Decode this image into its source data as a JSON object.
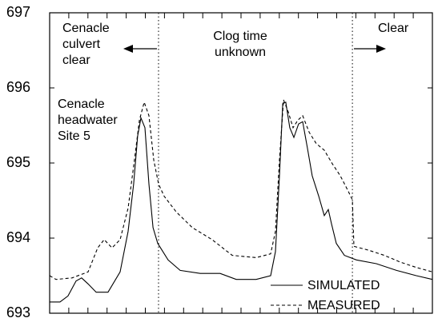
{
  "chart_data": {
    "type": "line",
    "ylim": [
      693,
      697
    ],
    "yticks": [
      693,
      694,
      695,
      696,
      697
    ],
    "xlim": [
      0,
      20
    ],
    "xticks": [
      1,
      2,
      3,
      4,
      5,
      6,
      7,
      8,
      9,
      10,
      11,
      12,
      13,
      14,
      15,
      16,
      17,
      18,
      19
    ],
    "vlines": [
      5.69,
      15.82
    ],
    "annotations": [
      [
        "Cenacle",
        "culvert",
        "clear"
      ],
      [
        "Clog time",
        "unknown"
      ],
      [
        "Clear"
      ],
      [
        "Cenacle",
        "headwater",
        "Site 5"
      ]
    ],
    "series": [
      {
        "name": "SIMULATED",
        "color": "#000000",
        "dash": false,
        "x": [
          0,
          0.54,
          0.96,
          1.38,
          1.67,
          2.01,
          2.43,
          3.05,
          3.68,
          4.1,
          4.39,
          4.6,
          4.77,
          4.98,
          5.19,
          5.4,
          5.65,
          6.19,
          6.82,
          7.87,
          8.91,
          9.75,
          10.79,
          11.55,
          11.8,
          12.01,
          12.18,
          12.34,
          12.55,
          12.76,
          13.01,
          13.22,
          13.47,
          13.72,
          14.06,
          14.35,
          14.56,
          14.73,
          14.98,
          15.4,
          16.03,
          17.07,
          18.12,
          19.16,
          20
        ],
        "values": [
          693.15,
          693.15,
          693.23,
          693.43,
          693.47,
          693.39,
          693.28,
          693.28,
          693.55,
          694.09,
          694.72,
          695.36,
          695.6,
          695.47,
          694.72,
          694.14,
          693.93,
          693.71,
          693.57,
          693.53,
          693.53,
          693.45,
          693.45,
          693.5,
          693.82,
          694.83,
          695.79,
          695.81,
          695.47,
          695.34,
          695.52,
          695.55,
          695.2,
          694.83,
          694.56,
          694.3,
          694.38,
          694.19,
          693.93,
          693.77,
          693.71,
          693.66,
          693.57,
          693.5,
          693.45
        ]
      },
      {
        "name": "MEASURED",
        "color": "#000000",
        "dash": true,
        "x": [
          0,
          0.33,
          1.17,
          2.01,
          2.51,
          2.85,
          3.26,
          3.68,
          4.1,
          4.43,
          4.69,
          4.94,
          5.19,
          5.44,
          5.69,
          5.98,
          6.61,
          7.45,
          8.49,
          9.54,
          10.79,
          11.55,
          11.8,
          12.01,
          12.22,
          12.47,
          12.72,
          12.97,
          13.22,
          13.56,
          13.93,
          14.35,
          14.77,
          15.19,
          15.61,
          15.82,
          15.9,
          16.65,
          17.49,
          18.33,
          19.16,
          20
        ],
        "values": [
          693.5,
          693.45,
          693.47,
          693.55,
          693.87,
          693.98,
          693.87,
          693.98,
          694.4,
          695.04,
          695.57,
          695.81,
          695.63,
          695.04,
          694.72,
          694.56,
          694.35,
          694.14,
          693.98,
          693.77,
          693.74,
          693.79,
          694.09,
          695.04,
          695.84,
          695.68,
          695.47,
          695.57,
          695.63,
          695.41,
          695.26,
          695.17,
          694.99,
          694.83,
          694.62,
          694.51,
          693.89,
          693.84,
          693.77,
          693.68,
          693.61,
          693.55
        ]
      }
    ]
  }
}
